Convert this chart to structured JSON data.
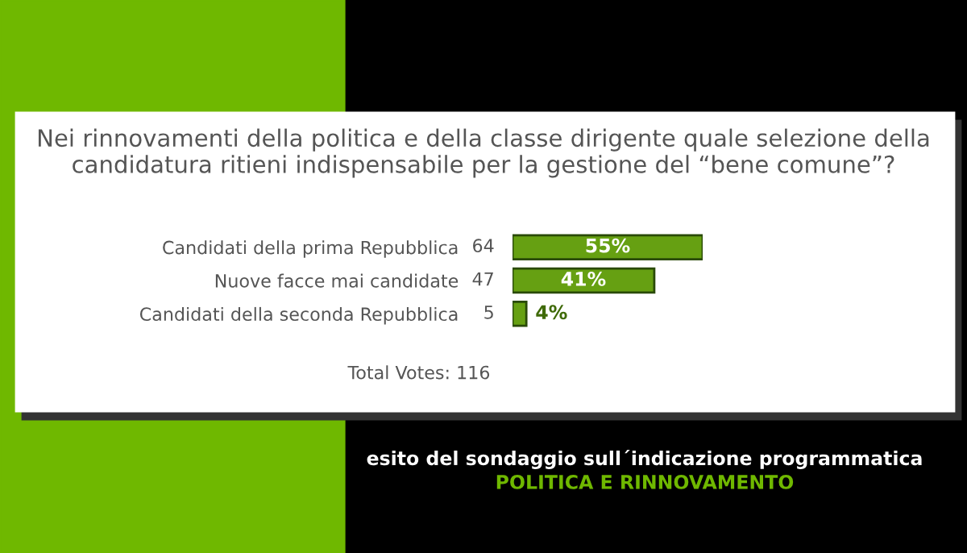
{
  "chart_data": {
    "type": "bar",
    "orientation": "horizontal",
    "title": "Nei rinnovamenti della politica e della classe dirigente quale selezione della candidatura ritieni indispensabile per la gestione del “bene comune”?",
    "categories": [
      "Candidati della prima Repubblica",
      "Nuove facce mai candidate",
      "Candidati della seconda Repubblica"
    ],
    "values": [
      55,
      41,
      4
    ],
    "color": "#66a012",
    "value_labels": [
      "55%",
      "41%",
      "4%"
    ],
    "annotations": [
      "64",
      "47",
      "5",
      "Total Votes: 116",
      "esito del sondaggio sull´indicazione programmatica",
      "POLITICA E RINNOVAMENTO"
    ],
    "grid": false,
    "legend": false
  }
}
